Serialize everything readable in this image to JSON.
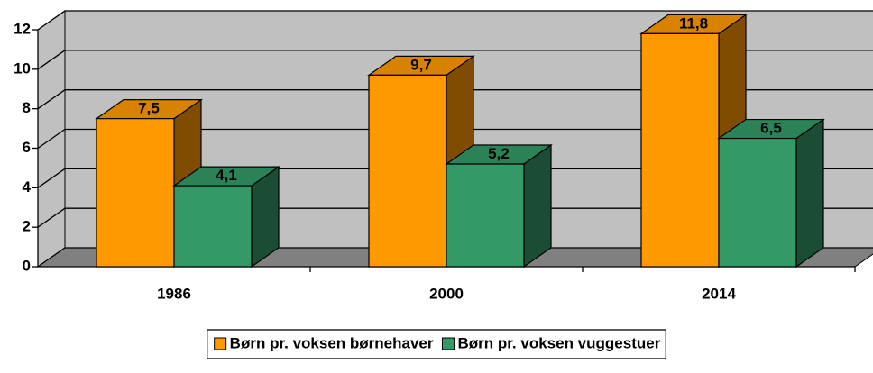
{
  "chart_data": {
    "type": "bar3d",
    "categories": [
      "1986",
      "2000",
      "2014"
    ],
    "series": [
      {
        "name": "Børn pr. voksen børnehaver",
        "color": "#FF9900",
        "values": [
          7.5,
          9.7,
          11.8
        ],
        "value_labels": [
          "7,5",
          "9,7",
          "11,8"
        ]
      },
      {
        "name": "Børn pr. voksen vuggestuer",
        "color": "#339966",
        "values": [
          4.1,
          5.2,
          6.5
        ],
        "value_labels": [
          "4,1",
          "5,2",
          "6,5"
        ]
      }
    ],
    "ylim": [
      0,
      12
    ],
    "yticks": [
      0,
      2,
      4,
      6,
      8,
      10,
      12
    ],
    "grid": true,
    "legend": "bottom"
  }
}
